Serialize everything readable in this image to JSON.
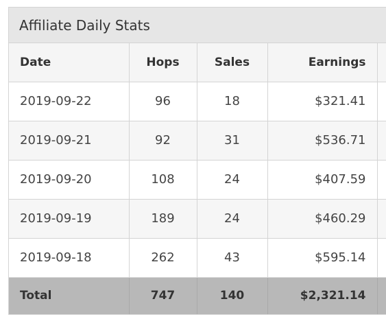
{
  "panel": {
    "title": "Affiliate Daily Stats"
  },
  "table": {
    "headers": {
      "date": "Date",
      "hops": "Hops",
      "sales": "Sales",
      "earnings": "Earnings"
    },
    "rows": [
      {
        "date": "2019-09-22",
        "hops": "96",
        "sales": "18",
        "earnings": "$321.41"
      },
      {
        "date": "2019-09-21",
        "hops": "92",
        "sales": "31",
        "earnings": "$536.71"
      },
      {
        "date": "2019-09-20",
        "hops": "108",
        "sales": "24",
        "earnings": "$407.59"
      },
      {
        "date": "2019-09-19",
        "hops": "189",
        "sales": "24",
        "earnings": "$460.29"
      },
      {
        "date": "2019-09-18",
        "hops": "262",
        "sales": "43",
        "earnings": "$595.14"
      }
    ],
    "total": {
      "label": "Total",
      "hops": "747",
      "sales": "140",
      "earnings": "$2,321.14"
    }
  }
}
